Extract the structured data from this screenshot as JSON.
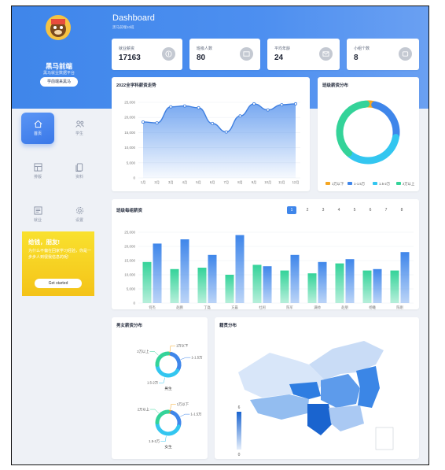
{
  "sidebar": {
    "app_name": "黑马前端",
    "app_subtitle": "黑马就业数据平台",
    "study_button": "学前端来黑马",
    "nav": [
      {
        "label": "首页",
        "icon": "home-icon"
      },
      {
        "label": "学生",
        "icon": "users-icon"
      },
      {
        "label": "排版",
        "icon": "layout-icon"
      },
      {
        "label": "资料",
        "icon": "document-icon"
      },
      {
        "label": "就业",
        "icon": "newspaper-icon"
      },
      {
        "label": "设置",
        "icon": "gear-icon"
      }
    ],
    "promo": {
      "title": "给钱，朋友!",
      "text": "为什么不偏在回家学习经验，你是一步步人到很我信息的呢!",
      "button": "Get started"
    }
  },
  "header": {
    "title": "Dashboard",
    "subtitle": "黑马前端10班"
  },
  "stats": [
    {
      "label": "就业薪资",
      "value": "17163",
      "icon": "money-icon"
    },
    {
      "label": "班级人数",
      "value": "80",
      "icon": "people-icon"
    },
    {
      "label": "平均年龄",
      "value": "24",
      "icon": "mail-icon"
    },
    {
      "label": "小组个数",
      "value": "8",
      "icon": "group-icon"
    }
  ],
  "colors": {
    "primary": "#3f86ea",
    "green": "#34d399",
    "cyan": "#33c6f0",
    "orange": "#f5a623",
    "yellow": "#f9d423"
  },
  "line_title": "2022全学科薪资走势",
  "pie_title": "班级薪资分布",
  "bar_title": "班级每组薪资",
  "gender_title": "男女薪资分布",
  "map_title": "籍贯分布",
  "pagination": [
    "1",
    "2",
    "3",
    "4",
    "5",
    "6",
    "7",
    "8"
  ],
  "map": {
    "legend_max": "6",
    "legend_min": "0"
  },
  "chart_data": [
    {
      "type": "area",
      "title": "2022全学科薪资走势",
      "categories": [
        "1月",
        "2月",
        "3月",
        "4月",
        "5月",
        "6月",
        "7月",
        "8月",
        "9月",
        "10月",
        "11月",
        "12月"
      ],
      "values": [
        18500,
        18200,
        23500,
        23800,
        23200,
        18000,
        15200,
        20500,
        24500,
        22500,
        24200,
        24500
      ],
      "ylim": [
        0,
        25000
      ],
      "yticks": [
        "0",
        "5,000",
        "10,000",
        "15,000",
        "20,000",
        "25,000"
      ],
      "grid": true
    },
    {
      "type": "pie",
      "title": "班级薪资分布",
      "labels": [
        "1万以下",
        "1-1.5万",
        "1.5-2万",
        "2万以上"
      ],
      "values": [
        4,
        24,
        34,
        38
      ],
      "colors": [
        "#f5a623",
        "#3f86ea",
        "#33c6f0",
        "#34d399"
      ],
      "legend": "bottom"
    },
    {
      "type": "bar",
      "title": "班级每组薪资",
      "categories": [
        "何杰",
        "赵鹏",
        "丁磊",
        "方晨",
        "杜闲",
        "陈军",
        "满帅",
        "赵朋",
        "杨曦",
        "陈刚"
      ],
      "series": [
        {
          "values": [
            14500,
            12000,
            12500,
            10000,
            13500,
            11500,
            10500,
            14000,
            11500,
            11500
          ],
          "color": "#34d399"
        },
        {
          "values": [
            21000,
            22500,
            17000,
            24000,
            13000,
            17000,
            14500,
            15500,
            12000,
            18000
          ],
          "color": "#3f86ea"
        }
      ],
      "ylim": [
        0,
        25000
      ],
      "yticks": [
        "0",
        "5,000",
        "10,000",
        "15,000",
        "20,000",
        "25,000"
      ]
    },
    {
      "type": "pie",
      "labels": [
        "1万以下",
        "1-1.5万",
        "1.5-2万",
        "2万以上"
      ],
      "values": [
        4,
        30,
        40,
        26
      ],
      "colors": [
        "#f5a623",
        "#3f86ea",
        "#33c6f0",
        "#34d399"
      ],
      "caption": "男生"
    },
    {
      "type": "pie",
      "labels": [
        "1万以下",
        "1-1.5万",
        "1.5-2万",
        "2万以上"
      ],
      "values": [
        5,
        25,
        45,
        25
      ],
      "colors": [
        "#f5a623",
        "#3f86ea",
        "#33c6f0",
        "#34d399"
      ],
      "caption": "女生"
    }
  ]
}
